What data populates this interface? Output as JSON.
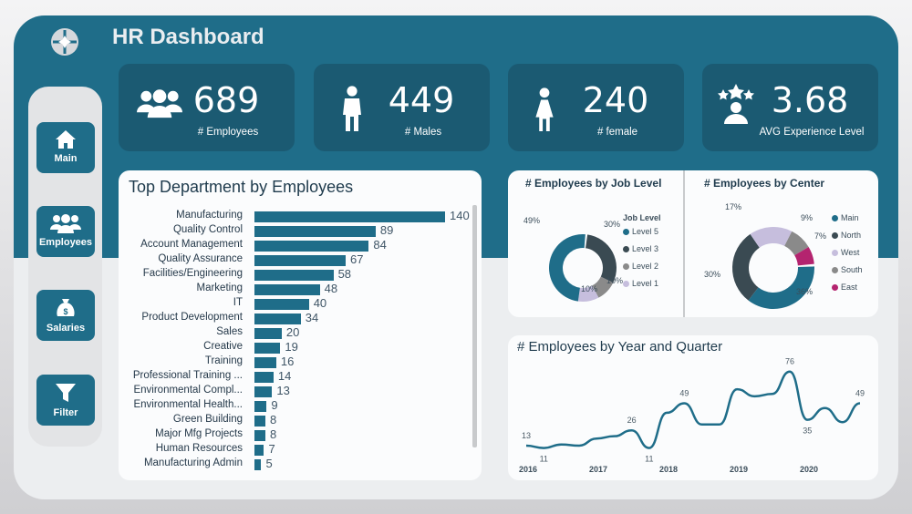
{
  "header": {
    "title": "HR Dashboard"
  },
  "nav": [
    {
      "label": "Main",
      "icon": "home-icon"
    },
    {
      "label": "Employees",
      "icon": "users-icon"
    },
    {
      "label": "Salaries",
      "icon": "money-bag-icon"
    },
    {
      "label": "Filter",
      "icon": "filter-icon"
    }
  ],
  "kpis": [
    {
      "value": "689",
      "label": "# Employees",
      "icon": "users-icon"
    },
    {
      "value": "449",
      "label": "# Males",
      "icon": "male-icon"
    },
    {
      "value": "240",
      "label": "# female",
      "icon": "female-icon"
    },
    {
      "value": "3.68",
      "label": "AVG Experience Level",
      "icon": "star-person-icon"
    }
  ],
  "colors": {
    "teal": "#1f6d89",
    "dark": "#3a4a52",
    "gray": "#8a8a8a",
    "lavender": "#c6bedd",
    "magenta": "#b4246f"
  },
  "chart_data": [
    {
      "type": "bar",
      "title": "Top Department by Employees",
      "orientation": "horizontal",
      "categories": [
        "Manufacturing",
        "Quality Control",
        "Account Management",
        "Quality Assurance",
        "Facilities/Engineering",
        "Marketing",
        "IT",
        "Product Development",
        "Sales",
        "Creative",
        "Training",
        "Professional Training ...",
        "Environmental Compl...",
        "Environmental Health...",
        "Green Building",
        "Major Mfg Projects",
        "Human Resources",
        "Manufacturing Admin"
      ],
      "values": [
        140,
        89,
        84,
        67,
        58,
        48,
        40,
        34,
        20,
        19,
        16,
        14,
        13,
        9,
        8,
        8,
        7,
        5
      ]
    },
    {
      "type": "pie",
      "title": "# Employees by Job Level",
      "legend_title": "Job Level",
      "legend_position": "right",
      "slices": [
        {
          "name": "Level 5",
          "value": 49,
          "label": "49%",
          "color": "#1f6d89"
        },
        {
          "name": "Level 3",
          "value": 30,
          "label": "30%",
          "color": "#3a4a52"
        },
        {
          "name": "Level 2",
          "value": 10,
          "label": "10%",
          "color": "#8a8a8a"
        },
        {
          "name": "Level 1",
          "value": 10,
          "label": "10%",
          "color": "#c6bedd"
        }
      ]
    },
    {
      "type": "pie",
      "title": "# Employees by Center",
      "legend_position": "right",
      "slices": [
        {
          "name": "Main",
          "value": 36,
          "label": "36%",
          "color": "#1f6d89"
        },
        {
          "name": "North",
          "value": 30,
          "label": "30%",
          "color": "#3a4a52"
        },
        {
          "name": "West",
          "value": 17,
          "label": "17%",
          "color": "#c6bedd"
        },
        {
          "name": "South",
          "value": 9,
          "label": "9%",
          "color": "#8a8a8a"
        },
        {
          "name": "East",
          "value": 7,
          "label": "7%",
          "color": "#b4246f"
        }
      ]
    },
    {
      "type": "line",
      "title": "# Employees by Year and Quarter",
      "x_ticks": [
        "2016",
        "2017",
        "2018",
        "2019",
        "2020"
      ],
      "values": [
        13,
        11,
        14,
        13,
        19,
        21,
        26,
        11,
        41,
        49,
        31,
        31,
        61,
        55,
        57,
        76,
        35,
        45,
        33,
        49
      ],
      "data_labels": [
        {
          "index": 0,
          "text": "13"
        },
        {
          "index": 1,
          "text": "11"
        },
        {
          "index": 6,
          "text": "26"
        },
        {
          "index": 7,
          "text": "11"
        },
        {
          "index": 9,
          "text": "49"
        },
        {
          "index": 15,
          "text": "76"
        },
        {
          "index": 16,
          "text": "35"
        },
        {
          "index": 19,
          "text": "49"
        }
      ]
    }
  ]
}
